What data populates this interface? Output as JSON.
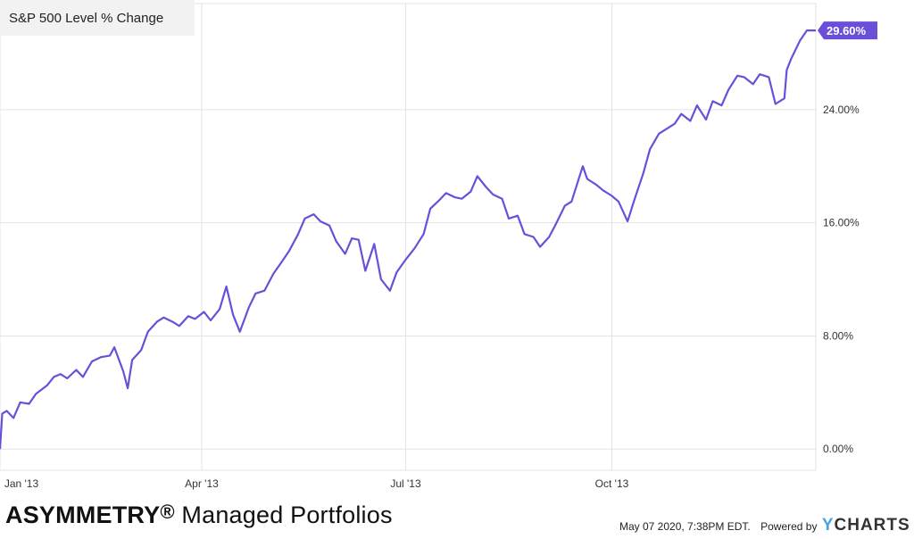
{
  "legend": {
    "label": "S&P 500 Level % Change"
  },
  "brand": {
    "bold": "ASYMMETRY",
    "reg": "®",
    "rest": " Managed Portfolios"
  },
  "footer": {
    "timestamp": "May 07 2020, 7:38PM EDT.",
    "powered_by": "Powered by",
    "logo_y": "Y",
    "logo_rest": "CHARTS"
  },
  "colors": {
    "series": "#6B4FD8",
    "grid": "#e3e3e3",
    "axis_text": "#333333"
  },
  "chart_data": {
    "type": "line",
    "title": "",
    "xlabel": "",
    "ylabel": "",
    "x_ticks": [
      "Jan '13",
      "Apr '13",
      "Jul '13",
      "Oct '13"
    ],
    "x_tick_dates": [
      "2013-01-01",
      "2013-04-01",
      "2013-07-01",
      "2013-10-01"
    ],
    "y_ticks": [
      "0.00%",
      "8.00%",
      "16.00%",
      "24.00%"
    ],
    "y_tick_values": [
      0,
      8,
      16,
      24
    ],
    "ylim": [
      -1.5,
      31.5
    ],
    "xlim": [
      "2013-01-01",
      "2013-12-31"
    ],
    "grid": true,
    "last_value_label": "29.60%",
    "series": [
      {
        "values": [
          [
            "2013-01-01",
            0.0
          ],
          [
            "2013-01-02",
            2.5
          ],
          [
            "2013-01-04",
            2.7
          ],
          [
            "2013-01-07",
            2.2
          ],
          [
            "2013-01-10",
            3.3
          ],
          [
            "2013-01-14",
            3.2
          ],
          [
            "2013-01-17",
            3.9
          ],
          [
            "2013-01-22",
            4.5
          ],
          [
            "2013-01-25",
            5.1
          ],
          [
            "2013-01-28",
            5.3
          ],
          [
            "2013-01-31",
            5.0
          ],
          [
            "2013-02-04",
            5.6
          ],
          [
            "2013-02-07",
            5.1
          ],
          [
            "2013-02-11",
            6.2
          ],
          [
            "2013-02-15",
            6.5
          ],
          [
            "2013-02-19",
            6.6
          ],
          [
            "2013-02-21",
            7.2
          ],
          [
            "2013-02-25",
            5.5
          ],
          [
            "2013-02-27",
            4.3
          ],
          [
            "2013-03-01",
            6.3
          ],
          [
            "2013-03-05",
            7.0
          ],
          [
            "2013-03-08",
            8.3
          ],
          [
            "2013-03-12",
            9.0
          ],
          [
            "2013-03-15",
            9.3
          ],
          [
            "2013-03-19",
            9.0
          ],
          [
            "2013-03-22",
            8.7
          ],
          [
            "2013-03-26",
            9.4
          ],
          [
            "2013-03-29",
            9.2
          ],
          [
            "2013-04-02",
            9.7
          ],
          [
            "2013-04-05",
            9.1
          ],
          [
            "2013-04-09",
            9.9
          ],
          [
            "2013-04-12",
            11.5
          ],
          [
            "2013-04-15",
            9.5
          ],
          [
            "2013-04-18",
            8.3
          ],
          [
            "2013-04-22",
            10.0
          ],
          [
            "2013-04-25",
            11.0
          ],
          [
            "2013-04-29",
            11.2
          ],
          [
            "2013-05-03",
            12.4
          ],
          [
            "2013-05-07",
            13.3
          ],
          [
            "2013-05-10",
            14.0
          ],
          [
            "2013-05-14",
            15.2
          ],
          [
            "2013-05-17",
            16.3
          ],
          [
            "2013-05-21",
            16.6
          ],
          [
            "2013-05-24",
            16.1
          ],
          [
            "2013-05-28",
            15.8
          ],
          [
            "2013-05-31",
            14.7
          ],
          [
            "2013-06-04",
            13.8
          ],
          [
            "2013-06-07",
            14.9
          ],
          [
            "2013-06-10",
            14.8
          ],
          [
            "2013-06-13",
            12.6
          ],
          [
            "2013-06-17",
            14.5
          ],
          [
            "2013-06-20",
            12.0
          ],
          [
            "2013-06-24",
            11.2
          ],
          [
            "2013-06-27",
            12.5
          ],
          [
            "2013-07-01",
            13.4
          ],
          [
            "2013-07-05",
            14.2
          ],
          [
            "2013-07-09",
            15.2
          ],
          [
            "2013-07-12",
            17.0
          ],
          [
            "2013-07-16",
            17.6
          ],
          [
            "2013-07-19",
            18.1
          ],
          [
            "2013-07-23",
            17.8
          ],
          [
            "2013-07-26",
            17.7
          ],
          [
            "2013-07-30",
            18.2
          ],
          [
            "2013-08-02",
            19.3
          ],
          [
            "2013-08-06",
            18.5
          ],
          [
            "2013-08-09",
            18.0
          ],
          [
            "2013-08-13",
            17.7
          ],
          [
            "2013-08-16",
            16.3
          ],
          [
            "2013-08-20",
            16.5
          ],
          [
            "2013-08-23",
            15.2
          ],
          [
            "2013-08-27",
            15.0
          ],
          [
            "2013-08-30",
            14.3
          ],
          [
            "2013-09-03",
            15.0
          ],
          [
            "2013-09-06",
            15.9
          ],
          [
            "2013-09-10",
            17.2
          ],
          [
            "2013-09-13",
            17.5
          ],
          [
            "2013-09-18",
            20.0
          ],
          [
            "2013-09-20",
            19.1
          ],
          [
            "2013-09-24",
            18.7
          ],
          [
            "2013-09-27",
            18.3
          ],
          [
            "2013-10-01",
            17.9
          ],
          [
            "2013-10-04",
            17.5
          ],
          [
            "2013-10-08",
            16.1
          ],
          [
            "2013-10-11",
            17.6
          ],
          [
            "2013-10-15",
            19.5
          ],
          [
            "2013-10-18",
            21.2
          ],
          [
            "2013-10-22",
            22.3
          ],
          [
            "2013-10-25",
            22.6
          ],
          [
            "2013-10-29",
            23.0
          ],
          [
            "2013-11-01",
            23.7
          ],
          [
            "2013-11-05",
            23.2
          ],
          [
            "2013-11-08",
            24.3
          ],
          [
            "2013-11-12",
            23.3
          ],
          [
            "2013-11-15",
            24.6
          ],
          [
            "2013-11-19",
            24.3
          ],
          [
            "2013-11-22",
            25.4
          ],
          [
            "2013-11-26",
            26.4
          ],
          [
            "2013-11-29",
            26.3
          ],
          [
            "2013-12-03",
            25.8
          ],
          [
            "2013-12-06",
            26.5
          ],
          [
            "2013-12-10",
            26.3
          ],
          [
            "2013-12-13",
            24.4
          ],
          [
            "2013-12-17",
            24.8
          ],
          [
            "2013-12-18",
            26.8
          ],
          [
            "2013-12-20",
            27.6
          ],
          [
            "2013-12-24",
            28.9
          ],
          [
            "2013-12-27",
            29.6
          ],
          [
            "2013-12-31",
            29.6
          ]
        ]
      }
    ]
  }
}
